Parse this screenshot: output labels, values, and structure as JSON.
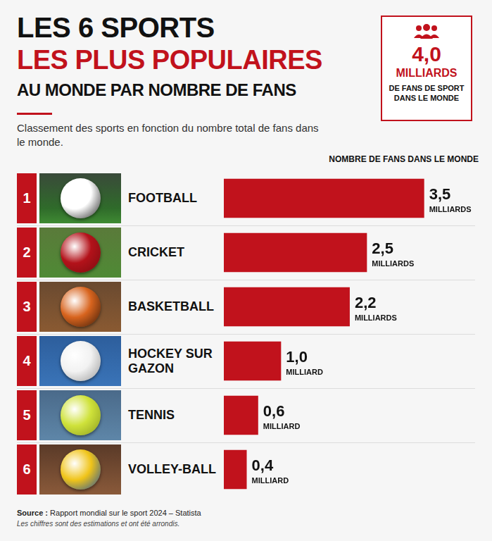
{
  "chart_data": {
    "type": "bar",
    "orientation": "horizontal",
    "title": [
      "LES 6 SPORTS",
      "LES PLUS POPULAIRES",
      "AU MONDE PAR NOMBRE DE FANS"
    ],
    "subtitle": "Classement des sports en fonction du nombre total de fans dans le monde.",
    "x_label": "NOMBRE DE FANS DANS LE MONDE",
    "callout": {
      "number": "4,0",
      "unit": "MILLIARDS",
      "text": "DE FANS DE SPORT DANS LE MONDE"
    },
    "ranks": [
      1,
      2,
      3,
      4,
      5,
      6
    ],
    "categories": [
      "FOOTBALL",
      "CRICKET",
      "BASKETBALL",
      "HOCKEY SUR GAZON",
      "TENNIS",
      "VOLLEY-BALL"
    ],
    "values": [
      3.5,
      2.5,
      2.2,
      1.0,
      0.6,
      0.4
    ],
    "value_labels": [
      "3,5 MILLIARDS",
      "2,5 MILLIARDS",
      "2,2 MILLIARDS",
      "1,0 MILLIARD",
      "0,6 MILLIARD",
      "0,4 MILLIARD"
    ],
    "color": "#c1121c",
    "xlim": [
      0,
      4.5
    ],
    "grid": false,
    "tick_labels": false,
    "data_labels": true,
    "source": "Source : Rapport mondial sur le sport 2024 – Statista",
    "note": "Les chiffres sont des estimations et ont été arrondis."
  }
}
